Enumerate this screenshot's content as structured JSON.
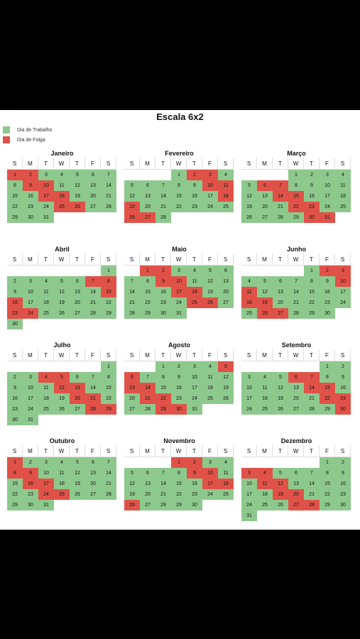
{
  "title": "Escala 6x2",
  "legend": [
    {
      "label": "Dia de Trabalho",
      "color": "#8dc98d"
    },
    {
      "label": "Dia de Folga",
      "color": "#e05248"
    }
  ],
  "weekdays": [
    "S",
    "M",
    "T",
    "W",
    "T",
    "F",
    "S"
  ],
  "months": [
    {
      "name": "Janeiro",
      "start": 0,
      "days": 31,
      "off": [
        1,
        2,
        9,
        10,
        17,
        18,
        25,
        26
      ]
    },
    {
      "name": "Fevereiro",
      "start": 3,
      "days": 28,
      "off": [
        2,
        3,
        10,
        11,
        18,
        19,
        26,
        27
      ]
    },
    {
      "name": "Março",
      "start": 3,
      "days": 31,
      "off": [
        6,
        7,
        14,
        15,
        22,
        23,
        30,
        31
      ]
    },
    {
      "name": "Abril",
      "start": 6,
      "days": 30,
      "off": [
        7,
        8,
        15,
        16,
        23,
        24
      ]
    },
    {
      "name": "Maio",
      "start": 1,
      "days": 31,
      "off": [
        1,
        2,
        9,
        10,
        17,
        18,
        25,
        26
      ]
    },
    {
      "name": "Junho",
      "start": 4,
      "days": 30,
      "off": [
        2,
        3,
        10,
        11,
        18,
        19,
        26,
        27
      ]
    },
    {
      "name": "Julho",
      "start": 6,
      "days": 31,
      "off": [
        4,
        5,
        12,
        13,
        20,
        21,
        28,
        29
      ]
    },
    {
      "name": "Agosto",
      "start": 2,
      "days": 31,
      "off": [
        5,
        6,
        13,
        14,
        21,
        22,
        29,
        30
      ]
    },
    {
      "name": "Setembro",
      "start": 5,
      "days": 30,
      "off": [
        6,
        7,
        14,
        15,
        22,
        23,
        30
      ]
    },
    {
      "name": "Outubro",
      "start": 0,
      "days": 31,
      "off": [
        1,
        8,
        9,
        16,
        17,
        24,
        25
      ]
    },
    {
      "name": "Novembro",
      "start": 3,
      "days": 30,
      "off": [
        1,
        2,
        9,
        10,
        17,
        18,
        26
      ]
    },
    {
      "name": "Dezembro",
      "start": 5,
      "days": 31,
      "off": [
        3,
        4,
        11,
        12,
        19,
        20,
        27,
        28
      ]
    }
  ]
}
